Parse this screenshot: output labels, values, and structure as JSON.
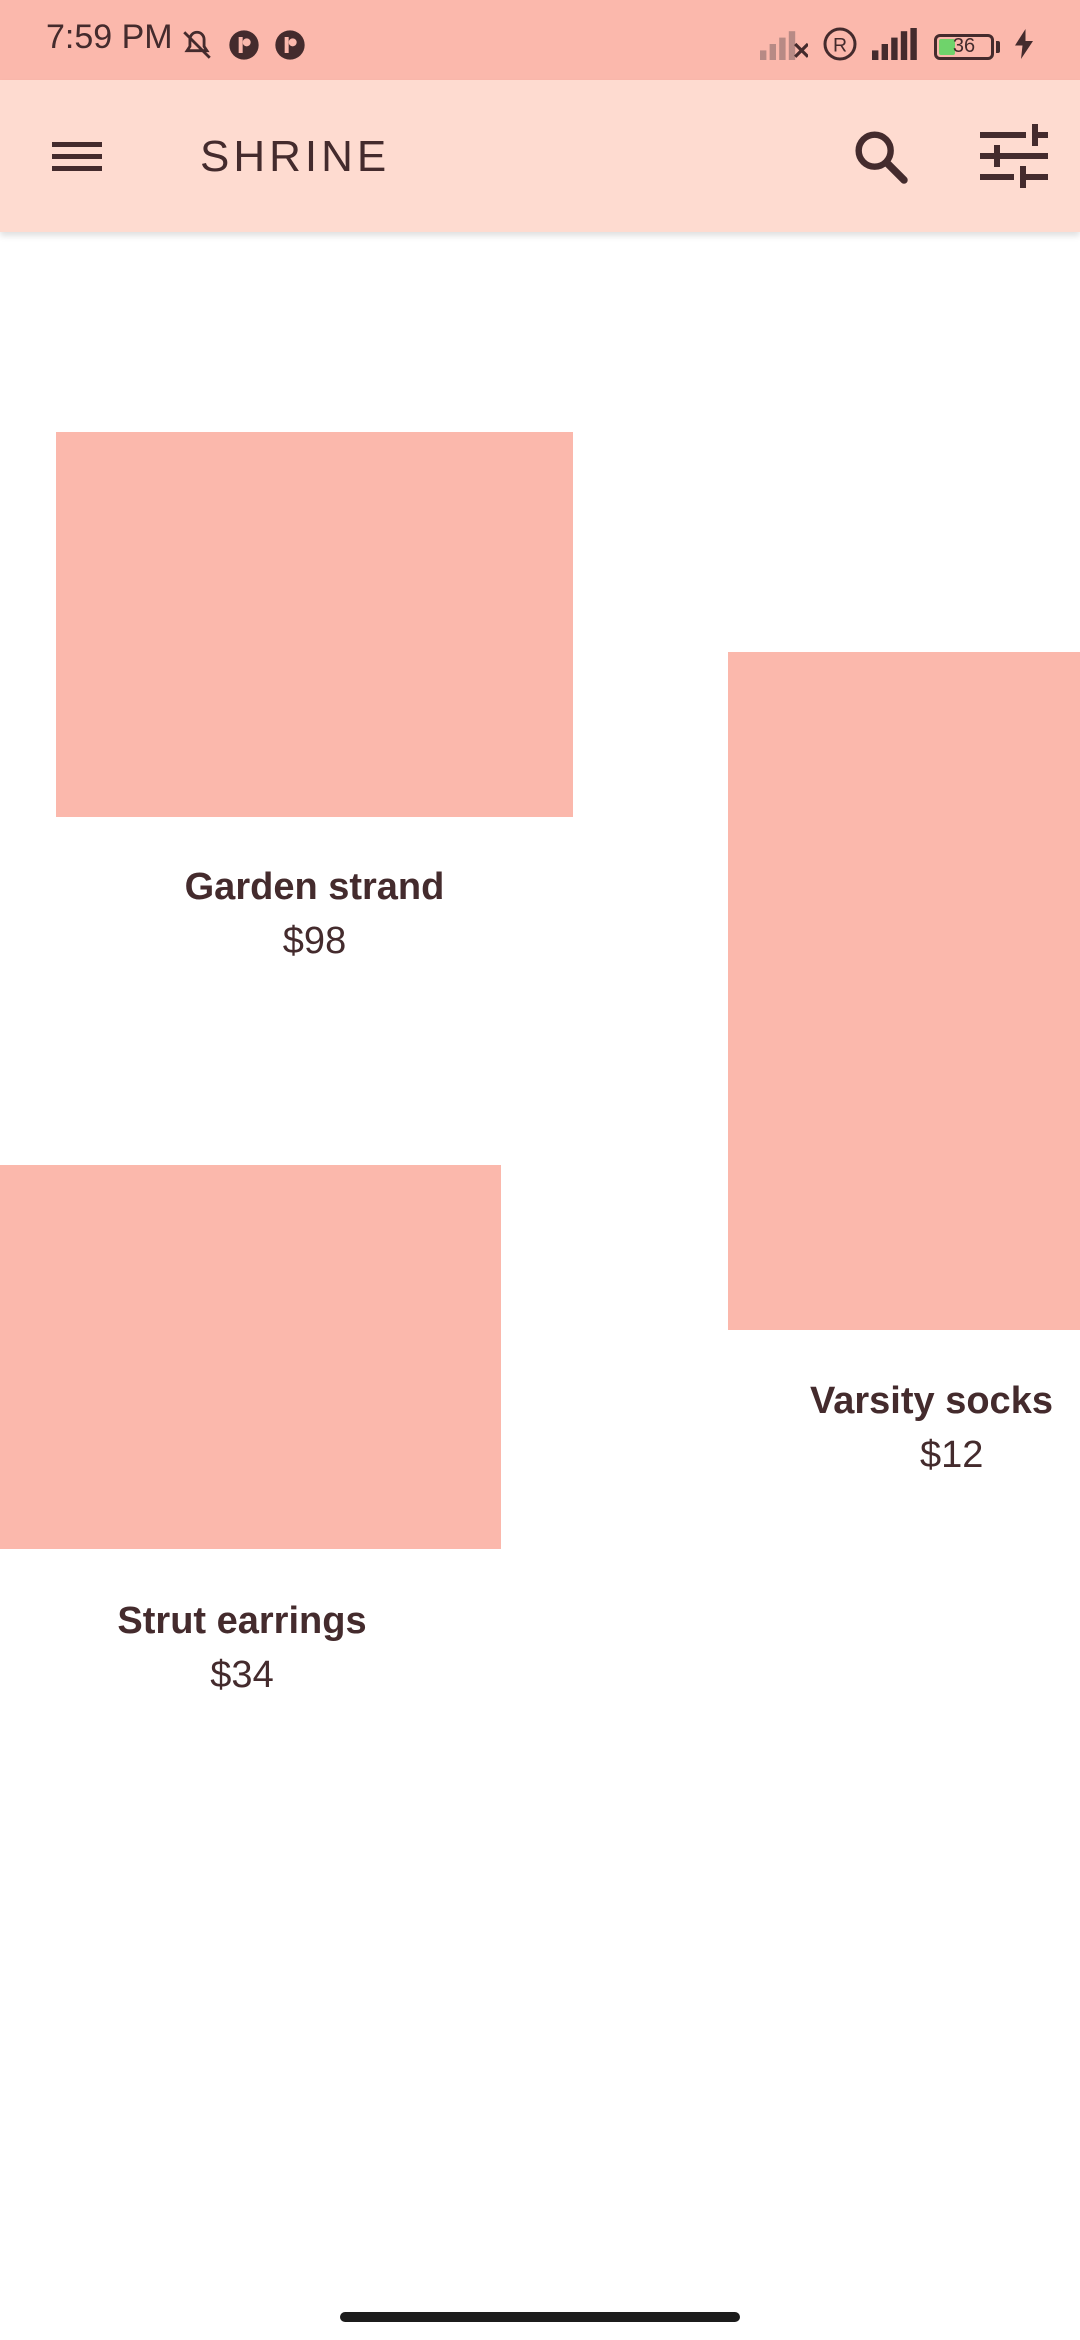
{
  "status_bar": {
    "time": "7:59 PM",
    "battery_level": "36",
    "icons_left": [
      "bell-off-icon",
      "app-badge-icon",
      "app-badge-icon"
    ],
    "icons_right": [
      "signal-none-icon",
      "registered-icon",
      "signal-icon",
      "battery-icon",
      "charging-icon"
    ]
  },
  "app_bar": {
    "title": "SHRINE",
    "menu_icon": "menu-icon",
    "search_icon": "search-icon",
    "filter_icon": "tune-icon"
  },
  "products": [
    {
      "name": "Garden strand",
      "price": "$98"
    },
    {
      "name": "Varsity socks",
      "price": "$12"
    },
    {
      "name": "Strut earrings",
      "price": "$34"
    }
  ],
  "colors": {
    "status_bar": "#fbb8ac",
    "app_bar": "#fedbd0",
    "image_placeholder": "#fbb8ac",
    "text": "#442b2d"
  }
}
